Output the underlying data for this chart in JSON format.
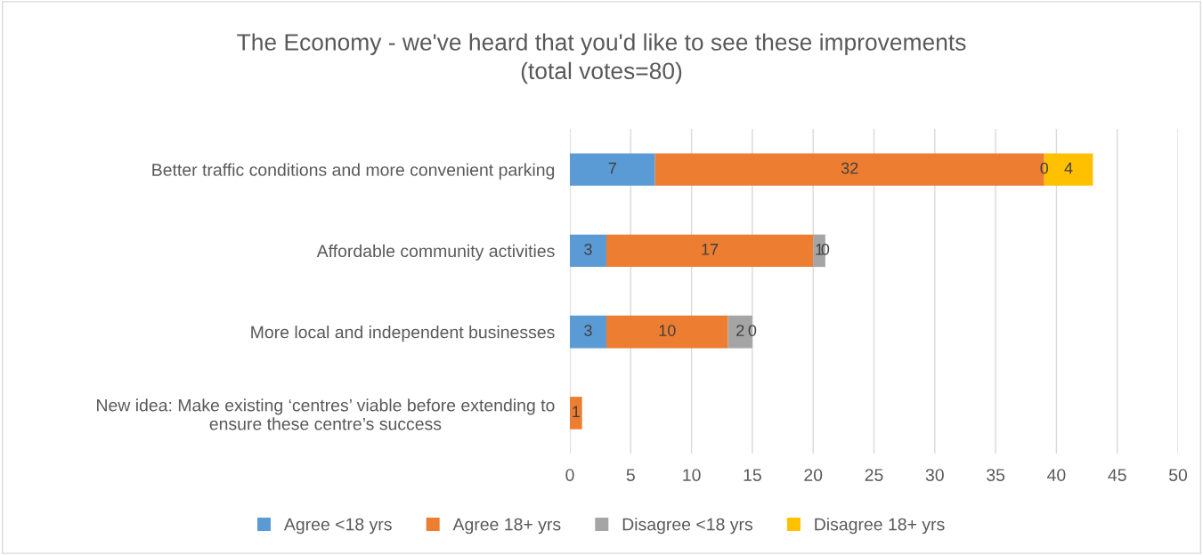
{
  "chart_data": {
    "type": "bar",
    "orientation": "horizontal",
    "stacked": true,
    "title": "The Economy - we've heard that you'd like to see these improvements\n(total votes=80)",
    "categories": [
      "Better traffic conditions and more convenient parking",
      "Affordable community activities",
      "More local and independent businesses",
      "New idea: Make existing ‘centres’ viable before extending to\nensure these centre’s success"
    ],
    "series": [
      {
        "name": "Agree <18 yrs",
        "color": "#5b9bd5",
        "values": [
          7,
          3,
          3,
          null
        ]
      },
      {
        "name": "Agree 18+ yrs",
        "color": "#ed7d31",
        "values": [
          32,
          17,
          10,
          1
        ]
      },
      {
        "name": "Disagree <18 yrs",
        "color": "#a5a5a5",
        "values": [
          0,
          1,
          2,
          null
        ]
      },
      {
        "name": "Disagree 18+ yrs",
        "color": "#ffc000",
        "values": [
          4,
          0,
          0,
          null
        ]
      }
    ],
    "xlim": [
      0,
      50
    ],
    "xticks": [
      0,
      5,
      10,
      15,
      20,
      25,
      30,
      35,
      40,
      45,
      50
    ],
    "grid": "x",
    "legend": "bottom",
    "data_labels": true
  }
}
